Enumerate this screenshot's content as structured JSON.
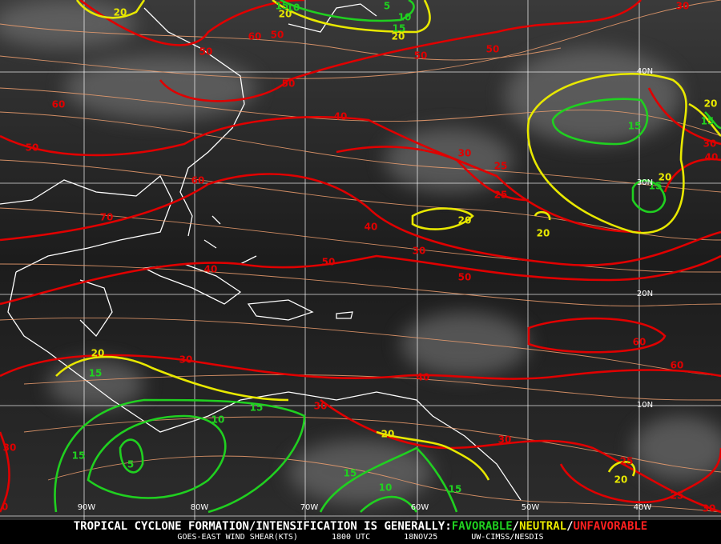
{
  "contour_labels": {
    "red": [
      30,
      60,
      50,
      50,
      50,
      50,
      60,
      50,
      40,
      50,
      30,
      25,
      25,
      60,
      70,
      40,
      30,
      50,
      50,
      40,
      30,
      40,
      60,
      60,
      30,
      40,
      30,
      30,
      25,
      25,
      30,
      30,
      0
    ],
    "yellow": [
      20,
      20,
      20,
      20,
      20,
      20,
      20,
      20,
      20,
      20
    ],
    "green": [
      15,
      10,
      5,
      10,
      15,
      15,
      15,
      15,
      15,
      15,
      10,
      5,
      15,
      15,
      10,
      15
    ]
  },
  "colors": {
    "red": "#e00000",
    "yellow": "#e8e800",
    "green": "#20d020"
  },
  "grid_labels": {
    "lat": [
      "40N",
      "30N",
      "20N",
      "10N"
    ],
    "lon": [
      "90W",
      "80W",
      "70W",
      "60W",
      "50W",
      "40W"
    ]
  },
  "footer": {
    "headline": "TROPICAL CYCLONE FORMATION/INTENSIFICATION IS GENERALLY:",
    "favorable": "FAVORABLE",
    "sep1": "/",
    "neutral": "NEUTRAL",
    "sep2": "/",
    "unfavorable": "UNFAVORABLE",
    "product": "GOES-EAST WIND SHEAR(KTS)",
    "time": "1800 UTC",
    "date": "18NOV25",
    "credit": "UW-CIMSS/NESDIS"
  }
}
